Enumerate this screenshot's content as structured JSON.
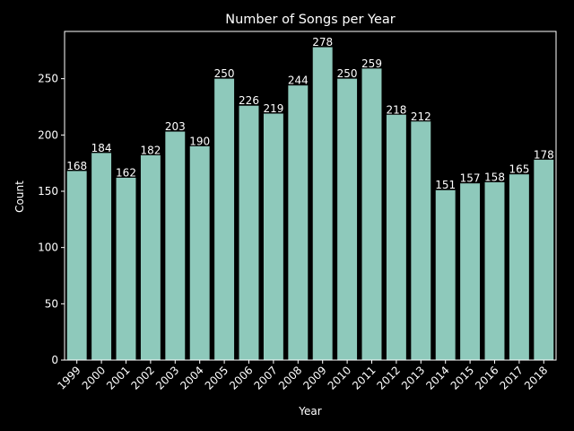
{
  "chart_data": {
    "type": "bar",
    "title": "Number of Songs per Year",
    "xlabel": "Year",
    "ylabel": "Count",
    "categories": [
      "1999",
      "2000",
      "2001",
      "2002",
      "2003",
      "2004",
      "2005",
      "2006",
      "2007",
      "2008",
      "2009",
      "2010",
      "2011",
      "2012",
      "2013",
      "2014",
      "2015",
      "2016",
      "2017",
      "2018"
    ],
    "values": [
      168,
      184,
      162,
      182,
      203,
      190,
      250,
      226,
      219,
      244,
      278,
      250,
      259,
      218,
      212,
      151,
      157,
      158,
      165,
      178
    ],
    "data_labels": [
      "168",
      "184",
      "162",
      "182",
      "203",
      "190",
      "250",
      "226",
      "219",
      "244",
      "278",
      "250",
      "259",
      "218",
      "212",
      "151",
      "157",
      "158",
      "165",
      "178"
    ],
    "ylim": [
      0,
      292
    ],
    "y_ticks": [
      0,
      50,
      100,
      150,
      200,
      250
    ],
    "grid": false,
    "legend": "none",
    "colors": {
      "background": "#000000",
      "bar": "#8ec9bb",
      "text": "#ffffff",
      "axes": "#ffffff"
    }
  }
}
